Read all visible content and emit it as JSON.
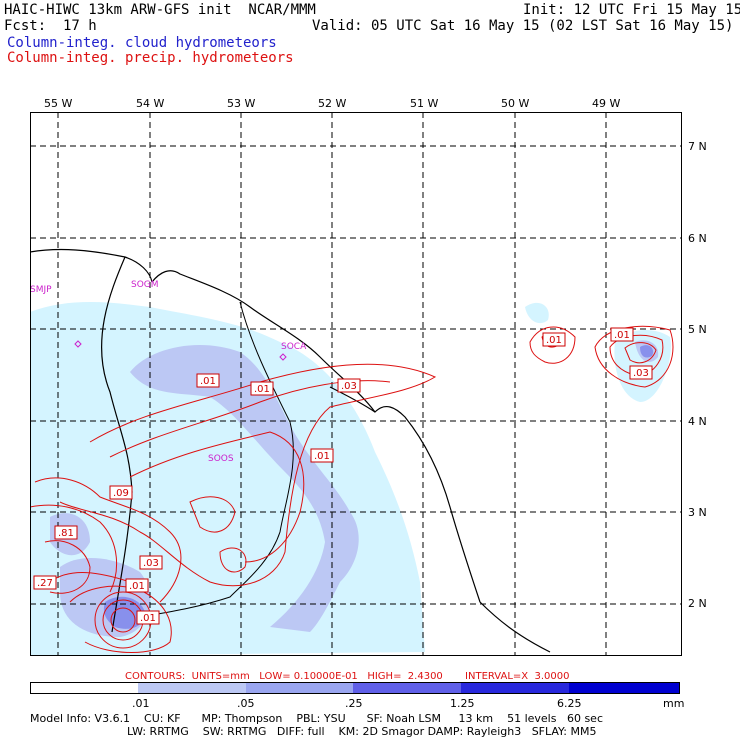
{
  "header": {
    "title_left": "HAIC-HIWC 13km ARW-GFS init  NCAR/MMM",
    "init": "Init: 12 UTC Fri 15 May 15",
    "fcst": "Fcst:  17 h",
    "valid": "Valid: 05 UTC Sat 16 May 15 (02 LST Sat 16 May 15)",
    "legend_cloud": "Column-integ. cloud hydrometeors",
    "legend_precip": "Column-integ. precip. hydrometeors"
  },
  "colors": {
    "cloud": "#2222cc",
    "precip": "#dd1111",
    "station": "#cc22cc"
  },
  "longitudes": [
    "55 W",
    "54 W",
    "53 W",
    "52 W",
    "51 W",
    "50 W",
    "49 W"
  ],
  "latitudes": [
    "7 N",
    "6 N",
    "5 N",
    "4 N",
    "3 N",
    "2 N"
  ],
  "stations": [
    "SMJP",
    "SOGM",
    "SOCA",
    "SOOS"
  ],
  "contour_labels": [
    ".01",
    ".01",
    ".03",
    ".01",
    ".09",
    ".81",
    ".03",
    ".27",
    ".01",
    ".01",
    ".01",
    ".01",
    ".03"
  ],
  "contour_info": "CONTOURS:  UNITS=mm   LOW= 0.10000E-01   HIGH=  2.4300       INTERVAL=X  3.0000",
  "colorbar": {
    "ticks": [
      ".01",
      ".05",
      ".25",
      "1.25",
      "6.25",
      "mm"
    ],
    "colors": [
      "#ffffff",
      "#d4f4ff",
      "#bcc8f4",
      "#9aa6f0",
      "#6060e8",
      "#2828dc",
      "#0000d0"
    ]
  },
  "footer": {
    "line1": "Model Info: V3.6.1    CU: KF      MP: Thompson    PBL: YSU      SF: Noah LSM     13 km    51 levels   60 sec",
    "line2": "LW: RRTMG    SW: RRTMG   DIFF: full    KM: 2D Smagor DAMP: Rayleigh3   SFLAY: MM5"
  }
}
